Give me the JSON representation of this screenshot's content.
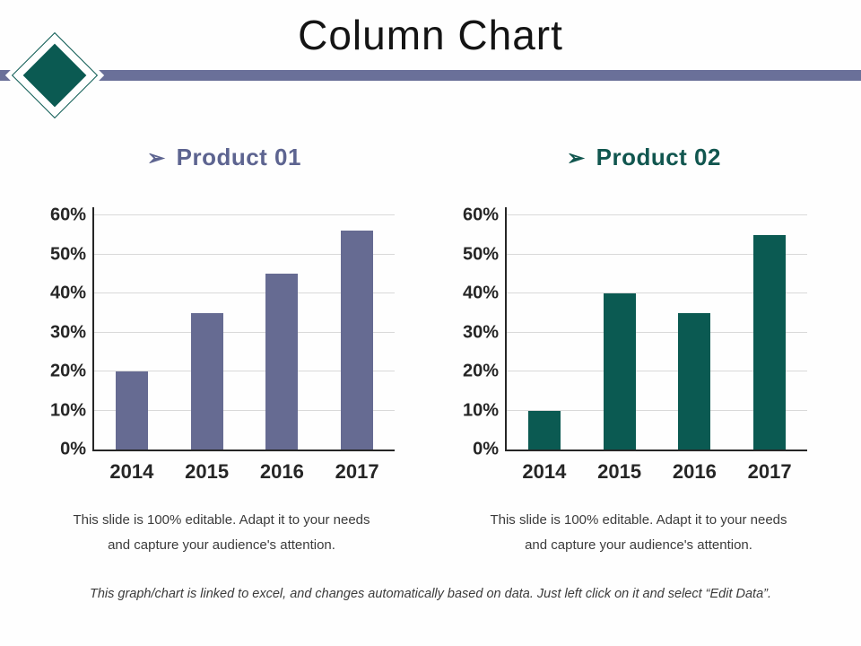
{
  "slide": {
    "title": "Column Chart",
    "footer": "This graph/chart is linked to excel, and changes automatically based on data. Just left click on it and select “Edit Data”."
  },
  "colors": {
    "accent_purple": "#666b92",
    "accent_teal": "#0b5a52",
    "heading_purple": "#5d6490",
    "heading_teal": "#11564f",
    "divider": "#6a7099",
    "gridline": "#d9d9d9",
    "axis": "#262626",
    "body_text": "#3b3b3b"
  },
  "charts": [
    {
      "bullet": "➢",
      "heading": "Product 01",
      "caption_line1": "This slide is 100% editable. Adapt it to your needs",
      "caption_line2": "and capture your audience's attention."
    },
    {
      "bullet": "➢",
      "heading": "Product 02",
      "caption_line1": "This slide is 100% editable. Adapt it to your needs",
      "caption_line2": "and capture your audience's attention."
    }
  ],
  "chart_data": [
    {
      "type": "bar",
      "title": "Product 01",
      "categories": [
        "2014",
        "2015",
        "2016",
        "2017"
      ],
      "values": [
        20,
        35,
        45,
        56
      ],
      "xlabel": "",
      "ylabel": "",
      "ylim": [
        0,
        60
      ],
      "ytick_step": 10,
      "yticklabels": [
        "0%",
        "10%",
        "20%",
        "30%",
        "40%",
        "50%",
        "60%"
      ],
      "ytick_format": "percent",
      "grid": true,
      "legend": "none",
      "bar_color": "#666b92"
    },
    {
      "type": "bar",
      "title": "Product 02",
      "categories": [
        "2014",
        "2015",
        "2016",
        "2017"
      ],
      "values": [
        10,
        40,
        35,
        55
      ],
      "xlabel": "",
      "ylabel": "",
      "ylim": [
        0,
        60
      ],
      "ytick_step": 10,
      "yticklabels": [
        "0%",
        "10%",
        "20%",
        "30%",
        "40%",
        "50%",
        "60%"
      ],
      "ytick_format": "percent",
      "grid": true,
      "legend": "none",
      "bar_color": "#0b5a52"
    }
  ]
}
